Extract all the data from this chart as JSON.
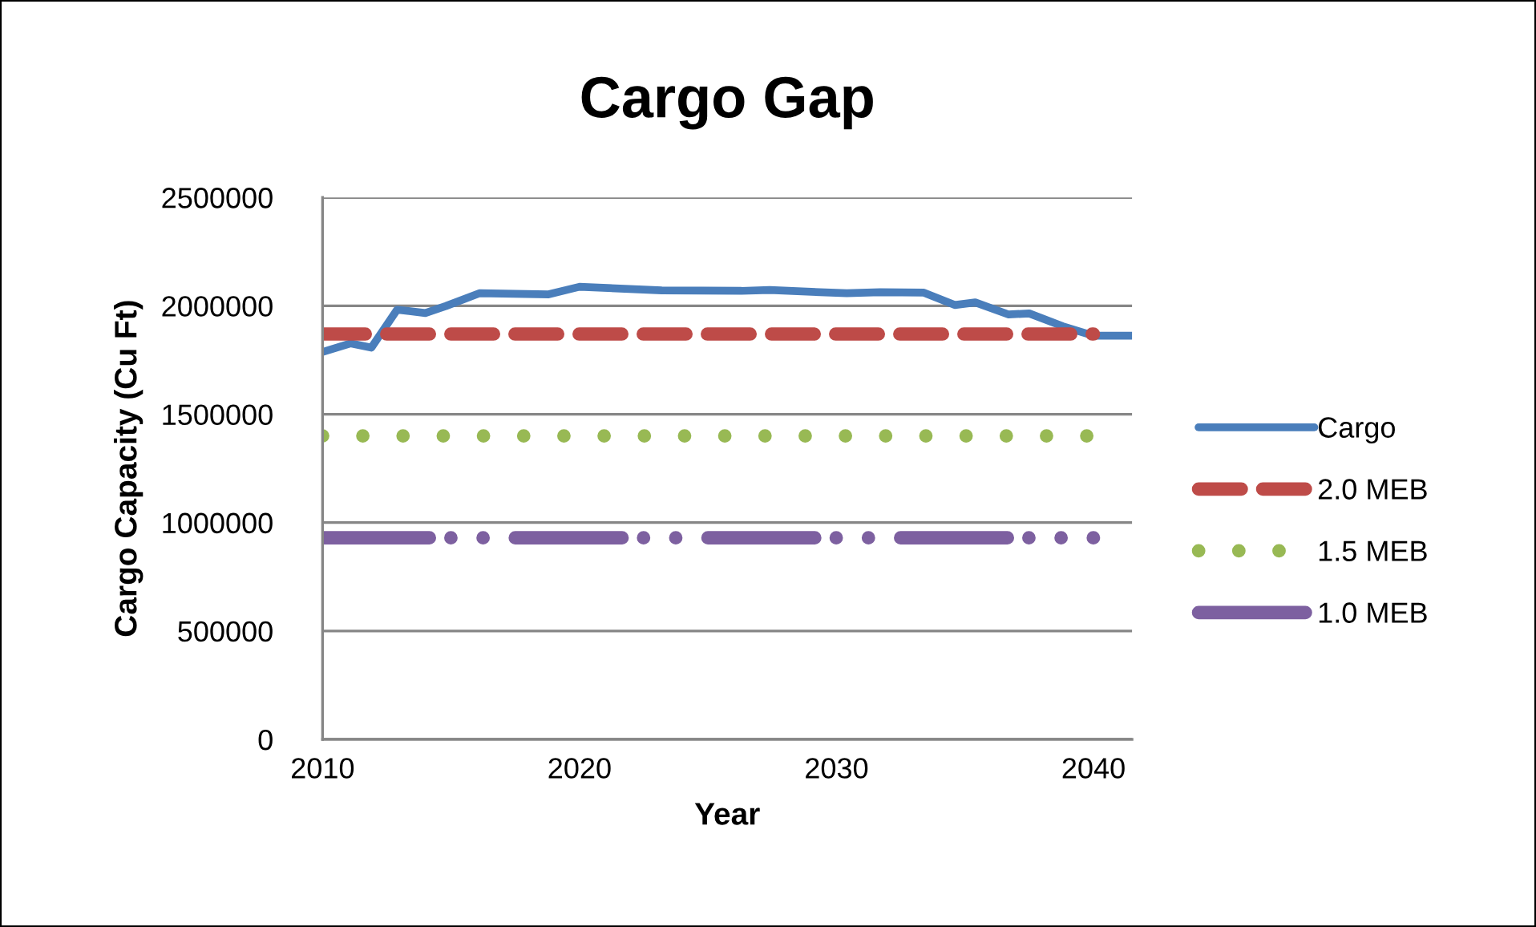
{
  "chart_data": {
    "type": "line",
    "title": "Cargo Gap",
    "xlabel": "Year",
    "ylabel": "Cargo Capacity (Cu Ft)",
    "xlim": [
      2010,
      2041.5
    ],
    "xticks": [
      2010,
      2020,
      2030,
      2040
    ],
    "ylim": [
      0,
      2500000
    ],
    "yticks": [
      0,
      500000,
      1000000,
      1500000,
      2000000,
      2500000
    ],
    "grid": "y",
    "legend": "right",
    "marker": "none",
    "series": [
      {
        "name": "Cargo",
        "color": "#4a7ebb",
        "line_style": "solid",
        "x": [
          2010.0,
          2011.1,
          2011.9,
          2012.9,
          2014.0,
          2014.8,
          2016.1,
          2018.8,
          2020.0,
          2023.2,
          2026.3,
          2027.4,
          2030.4,
          2031.7,
          2033.4,
          2034.6,
          2035.4,
          2036.7,
          2037.5,
          2038.8,
          2040.0,
          2041.5
        ],
        "values": [
          1787000,
          1827000,
          1807000,
          1982000,
          1967000,
          1999000,
          2058000,
          2053000,
          2088000,
          2071000,
          2069000,
          2073000,
          2058000,
          2063000,
          2061000,
          2004000,
          2016000,
          1960000,
          1965000,
          1906000,
          1862000,
          1862000
        ]
      },
      {
        "name": "2.0 MEB",
        "color": "#be4b48",
        "line_style": "dashed",
        "x": [
          2010,
          2040
        ],
        "values": [
          1870000,
          1870000
        ]
      },
      {
        "name": "1.5 MEB",
        "color": "#98b954",
        "line_style": "dotted",
        "x": [
          2010,
          2040
        ],
        "values": [
          1400000,
          1400000
        ]
      },
      {
        "name": "1.0 MEB",
        "color": "#7d60a0",
        "line_style": "long dash dot dot",
        "x": [
          2010,
          2040
        ],
        "values": [
          930000,
          930000
        ]
      }
    ]
  }
}
